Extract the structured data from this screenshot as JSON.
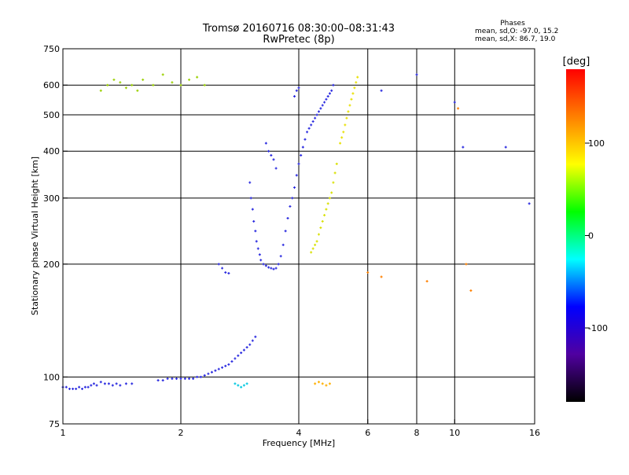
{
  "header": {
    "title": "Tromsø 20160716 08:30:00–08:31:43",
    "subtitle": "RwPretec (8p)"
  },
  "phase_info": {
    "heading": "Phases",
    "line_o": "mean, sd,O: -97.0, 15.2",
    "line_x": "mean, sd,X:  86.7, 19.0"
  },
  "chart_data": {
    "type": "scatter",
    "title": "Tromsø 20160716 08:30:00–08:31:43",
    "subtitle": "RwPretec (8p)",
    "xlabel": "Frequency [MHz]",
    "ylabel": "Stationary phase Virtual Height [km]",
    "x_scale": "log",
    "y_scale": "log",
    "xlim": [
      1,
      16
    ],
    "ylim": [
      75,
      750
    ],
    "x_ticks": [
      1,
      2,
      4,
      6,
      8,
      10,
      16
    ],
    "x_tick_labels": [
      "1",
      "2",
      "4",
      "6",
      "8",
      "10",
      "16"
    ],
    "y_ticks": [
      75,
      100,
      200,
      300,
      400,
      500,
      600,
      750
    ],
    "y_tick_labels": [
      "75",
      "100",
      "200",
      "300",
      "400",
      "500",
      "600",
      "750"
    ],
    "x_gridlines": [
      2,
      4,
      6,
      8,
      10
    ],
    "y_gridlines": [
      100,
      200,
      300,
      400,
      500,
      600
    ],
    "grid": true,
    "colorbar": {
      "label": "[deg]",
      "min": -180,
      "max": 180,
      "ticks": [
        100,
        0,
        -100
      ],
      "tick_labels": [
        "100",
        "0",
        "-100"
      ],
      "colors": [
        "#ff0000",
        "#ff8000",
        "#ffff00",
        "#00ff00",
        "#00ffff",
        "#0000ff",
        "#5000a0",
        "#000000"
      ]
    },
    "series": [
      {
        "color": "#2a2adf",
        "x": [
          1.0,
          1.02,
          1.04,
          1.06,
          1.08,
          1.1,
          1.12,
          1.14,
          1.16,
          1.18,
          1.2,
          1.22,
          1.25,
          1.28,
          1.31,
          1.34,
          1.37,
          1.4,
          1.45,
          1.5
        ],
        "y": [
          94,
          94,
          93,
          93,
          93,
          94,
          93,
          94,
          94,
          95,
          96,
          95,
          97,
          96,
          96,
          95,
          96,
          95,
          96,
          96
        ]
      },
      {
        "color": "#2a2adf",
        "x": [
          1.75,
          1.8,
          1.85,
          1.9,
          1.95,
          2.0,
          2.05,
          2.1,
          2.15,
          2.2,
          2.25,
          2.3,
          2.35,
          2.4,
          2.45,
          2.5,
          2.55,
          2.6,
          2.65,
          2.7,
          2.75,
          2.8,
          2.85,
          2.9,
          2.95,
          3.0,
          3.05,
          3.1
        ],
        "y": [
          98,
          98,
          99,
          99,
          99,
          99,
          99,
          99,
          99,
          100,
          100,
          101,
          102,
          103,
          104,
          105,
          106,
          107,
          108,
          110,
          112,
          114,
          116,
          118,
          120,
          122,
          125,
          128
        ]
      },
      {
        "color": "#2a2adf",
        "x": [
          2.5,
          2.55,
          2.6,
          2.65
        ],
        "y": [
          200,
          195,
          190,
          189
        ]
      },
      {
        "color": "#2a2adf",
        "x": [
          3.0,
          3.02,
          3.05,
          3.07,
          3.1,
          3.12,
          3.15,
          3.18,
          3.2,
          3.25,
          3.3,
          3.35,
          3.4,
          3.45,
          3.5,
          3.55,
          3.6,
          3.65,
          3.7,
          3.75,
          3.8,
          3.85,
          3.9,
          3.95,
          4.0,
          4.05,
          4.1,
          4.15,
          4.2,
          4.25,
          4.3,
          4.35,
          4.4,
          4.45,
          4.5,
          4.55,
          4.6,
          4.65,
          4.7,
          4.75,
          4.8,
          4.85,
          4.9
        ],
        "y": [
          330,
          300,
          280,
          260,
          245,
          230,
          220,
          212,
          205,
          200,
          198,
          196,
          195,
          194,
          195,
          200,
          210,
          225,
          245,
          265,
          285,
          300,
          320,
          345,
          370,
          390,
          410,
          430,
          450,
          460,
          470,
          480,
          490,
          500,
          510,
          520,
          530,
          540,
          550,
          560,
          570,
          580,
          600
        ]
      },
      {
        "color": "#2a2adf",
        "x": [
          3.3,
          3.35,
          3.4,
          3.45,
          3.5
        ],
        "y": [
          420,
          400,
          390,
          380,
          360
        ]
      },
      {
        "color": "#2a2adf",
        "x": [
          3.9,
          3.95,
          4.0
        ],
        "y": [
          560,
          580,
          590
        ]
      },
      {
        "color": "#d8e000",
        "x": [
          4.3,
          4.35,
          4.4,
          4.45,
          4.5,
          4.55,
          4.6,
          4.65,
          4.7,
          4.75,
          4.8,
          4.85,
          4.9,
          4.95,
          5.0
        ],
        "y": [
          215,
          220,
          225,
          230,
          240,
          250,
          260,
          270,
          280,
          290,
          300,
          310,
          330,
          350,
          370
        ]
      },
      {
        "color": "#e8e000",
        "x": [
          5.1,
          5.15,
          5.2,
          5.25,
          5.3,
          5.35,
          5.4,
          5.45,
          5.5,
          5.55,
          5.6,
          5.65
        ],
        "y": [
          420,
          435,
          450,
          470,
          490,
          510,
          530,
          550,
          570,
          590,
          610,
          630
        ]
      },
      {
        "color": "#9ad000",
        "x": [
          1.25,
          1.3,
          1.35,
          1.4,
          1.45,
          1.5,
          1.55,
          1.6,
          1.7,
          1.8,
          1.9,
          2.0,
          2.1,
          2.2,
          2.3
        ],
        "y": [
          580,
          600,
          620,
          610,
          590,
          600,
          580,
          620,
          600,
          640,
          610,
          600,
          620,
          630,
          600
        ]
      },
      {
        "color": "#00c8e0",
        "x": [
          2.75,
          2.8,
          2.85,
          2.9,
          2.95
        ],
        "y": [
          96,
          95,
          94,
          95,
          96
        ]
      },
      {
        "color": "#ffb000",
        "x": [
          4.4,
          4.5,
          4.6,
          4.7,
          4.8
        ],
        "y": [
          96,
          97,
          96,
          95,
          96
        ]
      },
      {
        "color": "#ff8000",
        "x": [
          6.0,
          6.5,
          8.5,
          10.2,
          10.7,
          11.0
        ],
        "y": [
          190,
          185,
          180,
          520,
          200,
          170
        ]
      },
      {
        "color": "#2a2adf",
        "x": [
          6.5,
          8.0,
          10.0,
          10.5,
          13.5,
          15.5
        ],
        "y": [
          580,
          640,
          540,
          410,
          410,
          290
        ]
      }
    ]
  }
}
